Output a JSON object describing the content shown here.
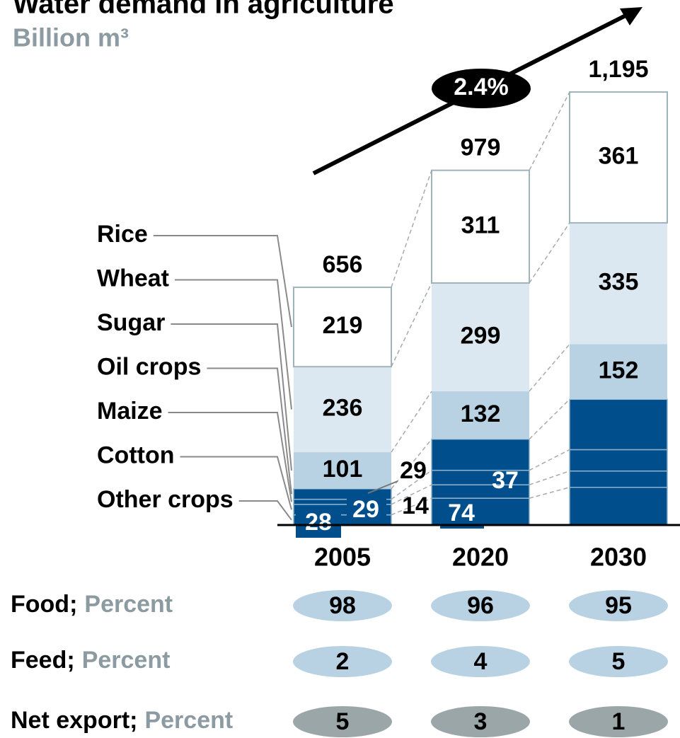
{
  "chart_data": {
    "type": "stacked-bar",
    "title": "Water demand in agriculture",
    "subtitle": "Billion m³",
    "annotation": "2.4%",
    "categories": [
      "2005",
      "2020",
      "2030"
    ],
    "ylim": [
      0,
      1200
    ],
    "series": [
      {
        "name": "Rice",
        "color": "#ffffff",
        "values": [
          219,
          311,
          361
        ],
        "value_labels": [
          "219",
          "311",
          "361"
        ]
      },
      {
        "name": "Wheat",
        "color": "#dce8f1",
        "values": [
          236,
          299,
          335
        ],
        "value_labels": [
          "236",
          "299",
          "335"
        ]
      },
      {
        "name": "Sugar",
        "color": "#b8d2e3",
        "values": [
          101,
          132,
          152
        ],
        "value_labels": [
          "101",
          "132",
          "152"
        ]
      },
      {
        "name": "Oil crops",
        "color": "#004f8c",
        "values": [
          29,
          86,
          139
        ],
        "value_labels": [
          "29",
          null,
          null
        ]
      },
      {
        "name": "Maize",
        "color": "#004f8c",
        "values": [
          14,
          40,
          59
        ],
        "value_labels": [
          "14",
          null,
          null
        ]
      },
      {
        "name": "Cotton",
        "color": "#004f8c",
        "values": [
          29,
          37,
          45
        ],
        "value_labels": [
          "29",
          "37",
          null
        ]
      },
      {
        "name": "Other crops",
        "color": "#004f8c",
        "values": [
          28,
          74,
          104
        ],
        "value_labels": [
          "28",
          "74",
          null
        ]
      }
    ],
    "totals": {
      "values": [
        656,
        979,
        1195
      ],
      "value_labels": [
        "656",
        "979",
        "1,195"
      ]
    },
    "rows": [
      {
        "label": "Food;",
        "unit": "Percent",
        "color": "#b8d2e3",
        "values": [
          98,
          96,
          95
        ]
      },
      {
        "label": "Feed;",
        "unit": "Percent",
        "color": "#b8d2e3",
        "values": [
          2,
          4,
          5
        ]
      },
      {
        "label": "Net export;",
        "unit": "Percent",
        "color": "#9ba6a9",
        "values": [
          5,
          3,
          1
        ]
      }
    ]
  }
}
